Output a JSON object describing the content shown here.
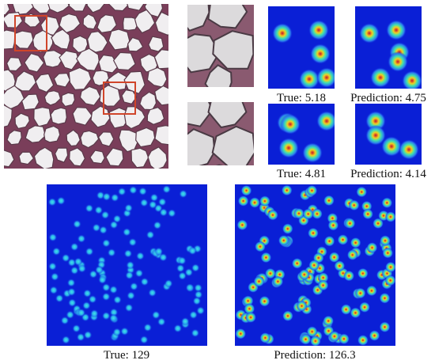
{
  "figure": {
    "small_maps": [
      {
        "caption": "True: 5.18"
      },
      {
        "caption": "Prediction: 4.75"
      },
      {
        "caption": "True: 4.81"
      },
      {
        "caption": "Prediction: 4.14"
      }
    ],
    "large_maps": [
      {
        "caption": "True: 129"
      },
      {
        "caption": "Prediction: 126.3"
      }
    ]
  },
  "colors": {
    "heatmap_background": "#0a1fd6",
    "tissue_background": "#f0eef0",
    "cell_border": "#5a3a4a",
    "roi_box": "#d0452a"
  }
}
